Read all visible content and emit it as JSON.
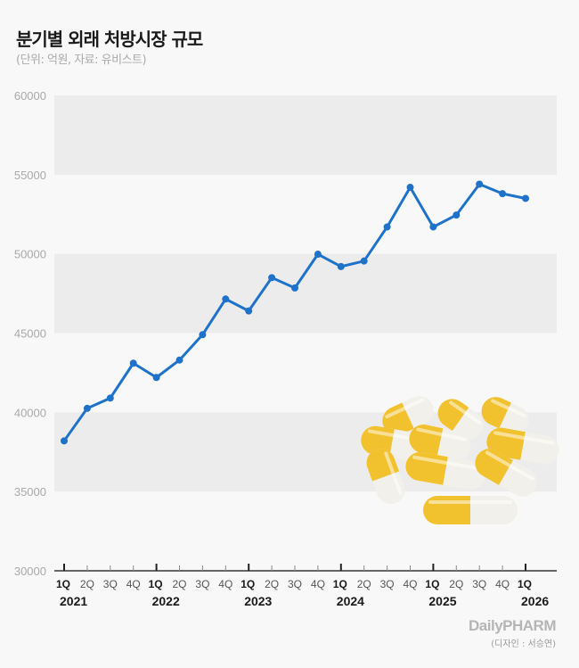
{
  "header": {
    "title": "분기별 외래 처방시장 규모",
    "subtitle": "(단위: 억원, 자료: 유비스트)"
  },
  "footer": {
    "logo": "DailyPHARM",
    "credit": "(디자인 : 서승연)"
  },
  "colors": {
    "line": "#1f72c9",
    "band": "#ececec",
    "background": "#f8f8f8",
    "capsule_yellow": "#f2c12e",
    "capsule_white": "#f1f0ea"
  },
  "chart_data": {
    "type": "line",
    "title": "분기별 외래 처방시장 규모",
    "subtitle": "(단위: 억원, 자료: 유비스트)",
    "xlabel": "",
    "ylabel": "",
    "ylim": [
      30000,
      60000
    ],
    "yticks": [
      30000,
      35000,
      40000,
      45000,
      50000,
      55000,
      60000
    ],
    "ytick_labels": [
      "30000",
      "35000",
      "40000",
      "45000",
      "50000",
      "55000",
      "60000"
    ],
    "grid": "alternating horizontal bands",
    "legend": "none",
    "categories": [
      "1Q",
      "2Q",
      "3Q",
      "4Q",
      "1Q",
      "2Q",
      "3Q",
      "4Q",
      "1Q",
      "2Q",
      "3Q",
      "4Q",
      "1Q",
      "2Q",
      "3Q",
      "4Q",
      "1Q",
      "2Q",
      "3Q",
      "4Q",
      "1Q"
    ],
    "years": [
      {
        "label": "2021",
        "start_index": 0
      },
      {
        "label": "2022",
        "start_index": 4
      },
      {
        "label": "2023",
        "start_index": 8
      },
      {
        "label": "2024",
        "start_index": 12
      },
      {
        "label": "2025",
        "start_index": 16
      },
      {
        "label": "2026",
        "start_index": 20
      }
    ],
    "series": [
      {
        "name": "외래 처방시장 규모",
        "values": [
          38200,
          40250,
          40900,
          43100,
          42200,
          43300,
          44900,
          47150,
          46400,
          48500,
          47850,
          49980,
          49200,
          49550,
          51700,
          54200,
          51700,
          52450,
          54400,
          53800,
          53500
        ]
      }
    ]
  }
}
